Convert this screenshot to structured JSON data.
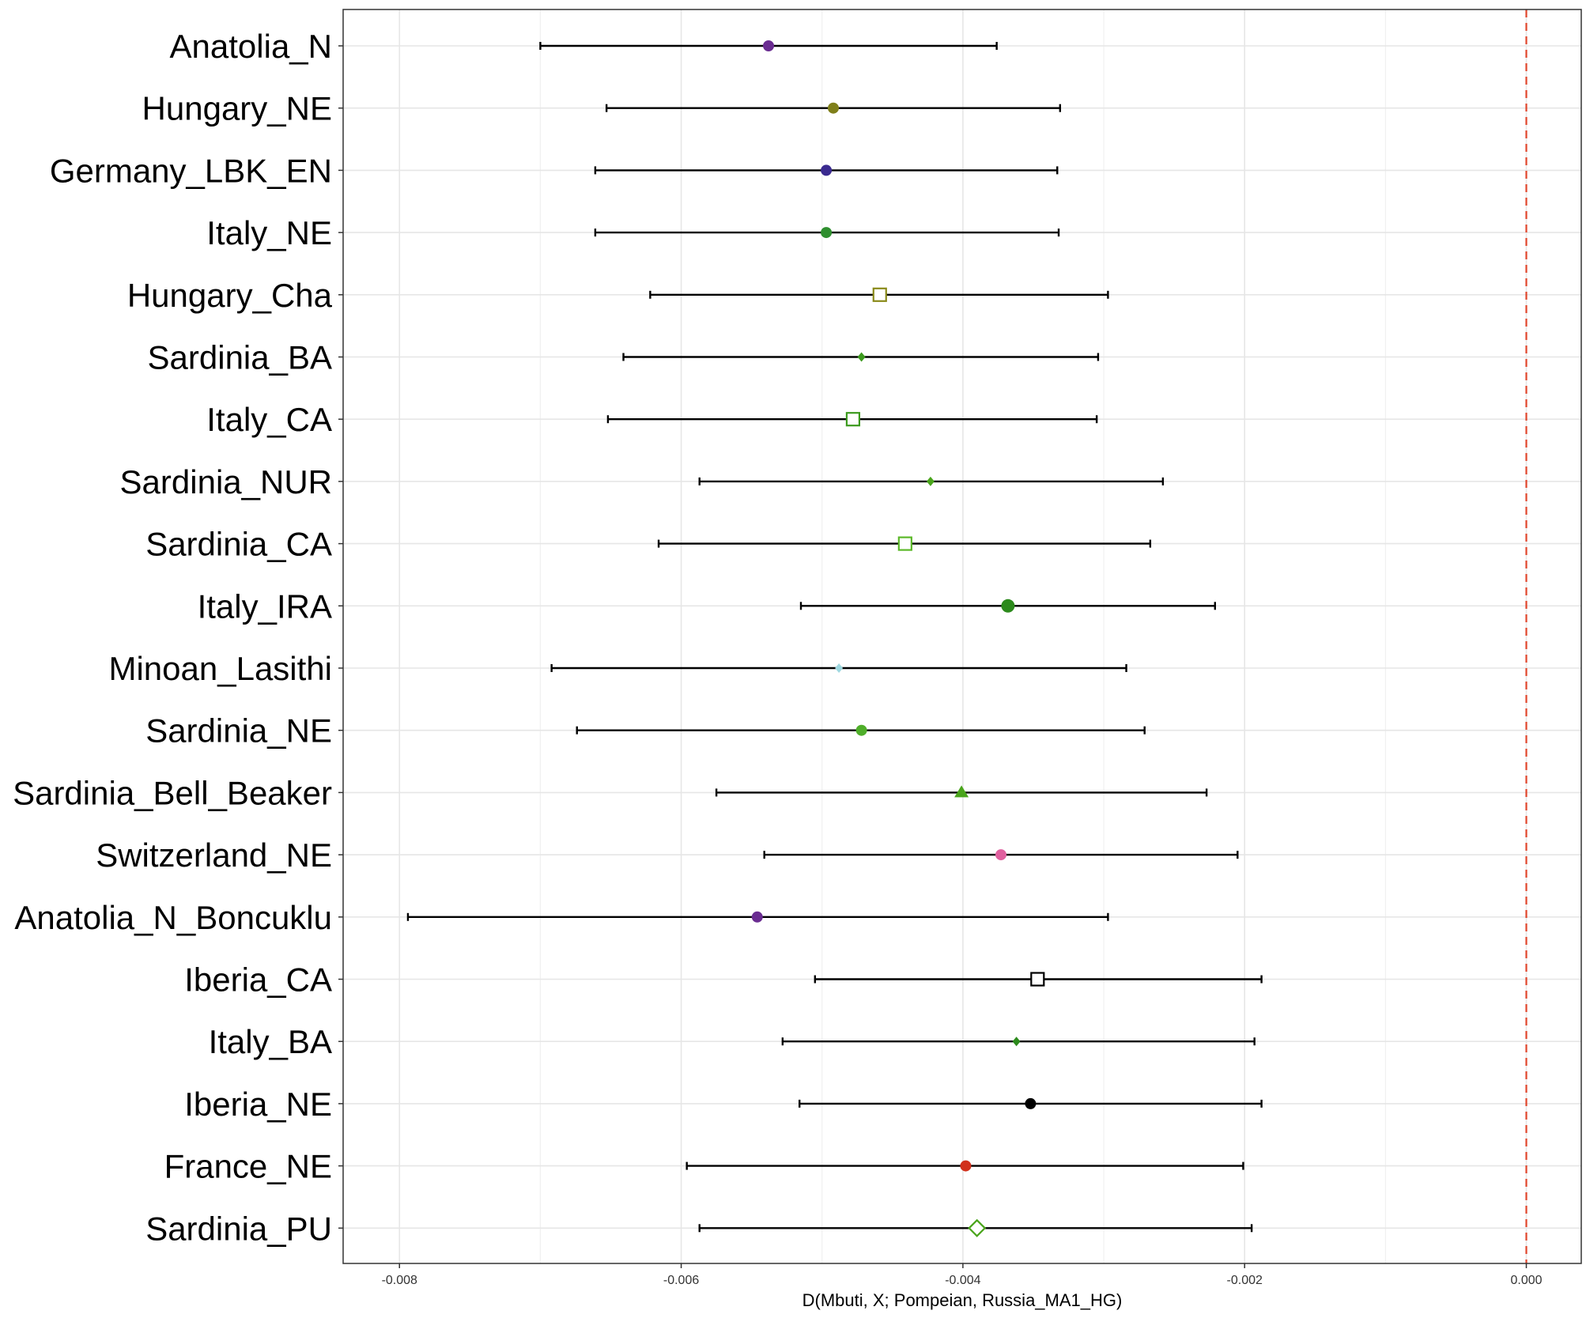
{
  "chart_data": {
    "type": "scatter",
    "subtype": "dot-with-error-bars",
    "title": "",
    "xlabel": "D(Mbuti, X; Pompeian, Russia_MA1_HG)",
    "ylabel": "",
    "xlim": [
      -0.0084,
      0.00039
    ],
    "x_ticks": [
      -0.008,
      -0.006,
      -0.004,
      -0.002,
      0.0
    ],
    "x_tick_labels": [
      "-0.008",
      "-0.006",
      "-0.004",
      "-0.002",
      "0.000"
    ],
    "grid": true,
    "legend": "none",
    "reference_line": {
      "x": 0.0,
      "color": "#e0452b",
      "style": "dashed"
    },
    "series": [
      {
        "name": "Anatolia_N",
        "x": -0.00538,
        "lo": -0.007,
        "hi": -0.00376,
        "marker": "circle",
        "color": "#6a2c91"
      },
      {
        "name": "Hungary_NE",
        "x": -0.00492,
        "lo": -0.00653,
        "hi": -0.00331,
        "marker": "circle",
        "color": "#7f7f1a"
      },
      {
        "name": "Germany_LBK_EN",
        "x": -0.00497,
        "lo": -0.00661,
        "hi": -0.00333,
        "marker": "circle",
        "color": "#3a2a8f"
      },
      {
        "name": "Italy_NE",
        "x": -0.00497,
        "lo": -0.00661,
        "hi": -0.00332,
        "marker": "circle",
        "color": "#2f8f2f"
      },
      {
        "name": "Hungary_Cha",
        "x": -0.00459,
        "lo": -0.00622,
        "hi": -0.00297,
        "marker": "square-open",
        "color": "#8a8a1a"
      },
      {
        "name": "Sardinia_BA",
        "x": -0.00472,
        "lo": -0.00641,
        "hi": -0.00304,
        "marker": "diamond",
        "color": "#3c9a1e"
      },
      {
        "name": "Italy_CA",
        "x": -0.00478,
        "lo": -0.00652,
        "hi": -0.00305,
        "marker": "square-open",
        "color": "#3c9a1e"
      },
      {
        "name": "Sardinia_NUR",
        "x": -0.00423,
        "lo": -0.00587,
        "hi": -0.00258,
        "marker": "diamond",
        "color": "#4aa51c"
      },
      {
        "name": "Sardinia_CA",
        "x": -0.00441,
        "lo": -0.00616,
        "hi": -0.00267,
        "marker": "square-open",
        "color": "#5cb82a"
      },
      {
        "name": "Italy_IRA",
        "x": -0.00368,
        "lo": -0.00515,
        "hi": -0.00221,
        "marker": "circle-large",
        "color": "#2c8a1c"
      },
      {
        "name": "Minoan_Lasithi",
        "x": -0.00488,
        "lo": -0.00692,
        "hi": -0.00284,
        "marker": "diamond",
        "color": "#9fd8e0"
      },
      {
        "name": "Sardinia_NE",
        "x": -0.00472,
        "lo": -0.00674,
        "hi": -0.00271,
        "marker": "circle",
        "color": "#4fae2a"
      },
      {
        "name": "Sardinia_Bell_Beaker",
        "x": -0.00401,
        "lo": -0.00575,
        "hi": -0.00227,
        "marker": "triangle",
        "color": "#4aa51c"
      },
      {
        "name": "Switzerland_NE",
        "x": -0.00373,
        "lo": -0.00541,
        "hi": -0.00205,
        "marker": "circle",
        "color": "#e0609f"
      },
      {
        "name": "Anatolia_N_Boncuklu",
        "x": -0.00546,
        "lo": -0.00794,
        "hi": -0.00297,
        "marker": "circle",
        "color": "#6a2c91"
      },
      {
        "name": "Iberia_CA",
        "x": -0.00347,
        "lo": -0.00505,
        "hi": -0.00188,
        "marker": "square-open",
        "color": "#000000"
      },
      {
        "name": "Italy_BA",
        "x": -0.00362,
        "lo": -0.00528,
        "hi": -0.00193,
        "marker": "diamond",
        "color": "#2c8a1c"
      },
      {
        "name": "Iberia_NE",
        "x": -0.00352,
        "lo": -0.00516,
        "hi": -0.00188,
        "marker": "circle",
        "color": "#000000"
      },
      {
        "name": "France_NE",
        "x": -0.00398,
        "lo": -0.00596,
        "hi": -0.00201,
        "marker": "circle",
        "color": "#d1301b"
      },
      {
        "name": "Sardinia_PU",
        "x": -0.0039,
        "lo": -0.00587,
        "hi": -0.00195,
        "marker": "diamond-open",
        "color": "#4aa51c"
      }
    ]
  }
}
